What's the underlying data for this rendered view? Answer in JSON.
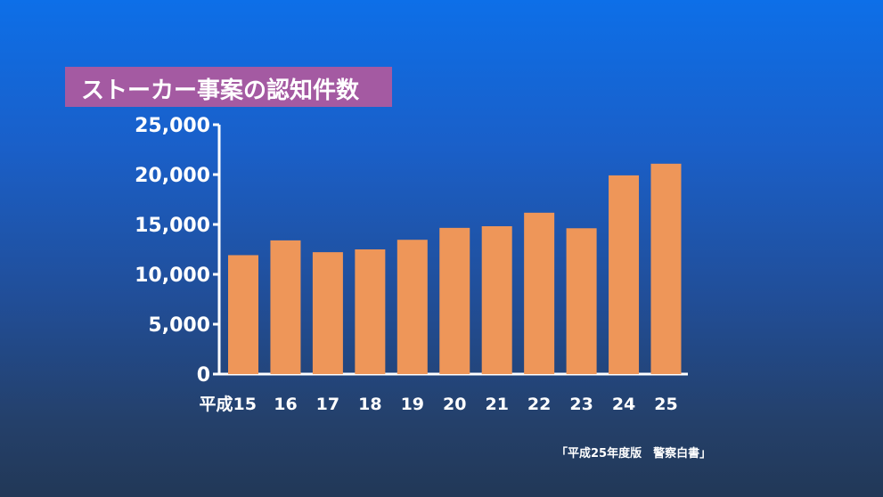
{
  "title": "ストーカー事案の認知件数",
  "source": "「平成25年度版　警察白書」",
  "colors": {
    "bar": "#ee9659",
    "axis": "#ffffff",
    "title_bg": "#a45aa2"
  },
  "chart_data": {
    "type": "bar",
    "title": "ストーカー事案の認知件数",
    "categories": [
      "平成15",
      "16",
      "17",
      "18",
      "19",
      "20",
      "21",
      "22",
      "23",
      "24",
      "25"
    ],
    "values": [
      11923,
      13403,
      12220,
      12501,
      13463,
      14657,
      14823,
      16176,
      14618,
      19920,
      21089
    ],
    "y_ticks": [
      "25,000",
      "20,000",
      "15,000",
      "10,000",
      "5,000",
      "0"
    ],
    "xlabel": "",
    "ylabel": "",
    "ylim": [
      0,
      25000
    ],
    "grid": false
  }
}
